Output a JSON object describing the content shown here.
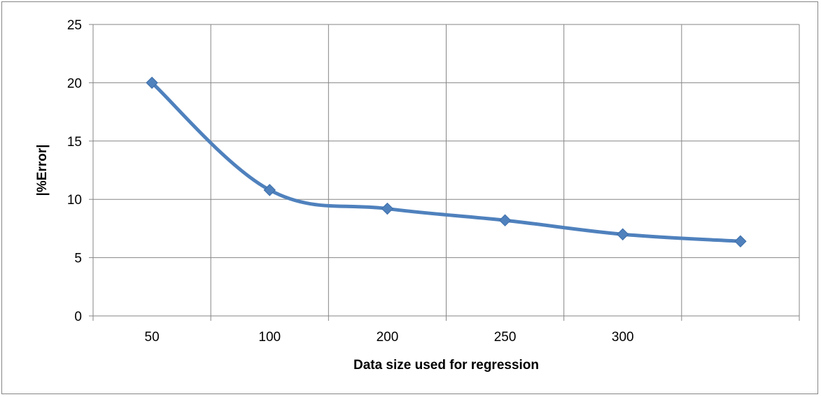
{
  "chart_data": {
    "type": "line",
    "title": "",
    "xlabel": "Data size used for regression",
    "ylabel": "|%Error|",
    "categories": [
      "50",
      "100",
      "200",
      "250",
      "300",
      ""
    ],
    "x_tick_labels": [
      "50",
      "100",
      "200",
      "250",
      "300"
    ],
    "y_tick_labels": [
      "0",
      "5",
      "10",
      "15",
      "20",
      "25"
    ],
    "ylim": [
      0,
      25
    ],
    "grid": true,
    "legend": "none",
    "smoothed": true,
    "marker": "diamond",
    "series": [
      {
        "values": [
          20.0,
          10.8,
          9.2,
          8.2,
          7.0,
          6.4
        ],
        "color": "#4f81bd"
      }
    ]
  }
}
